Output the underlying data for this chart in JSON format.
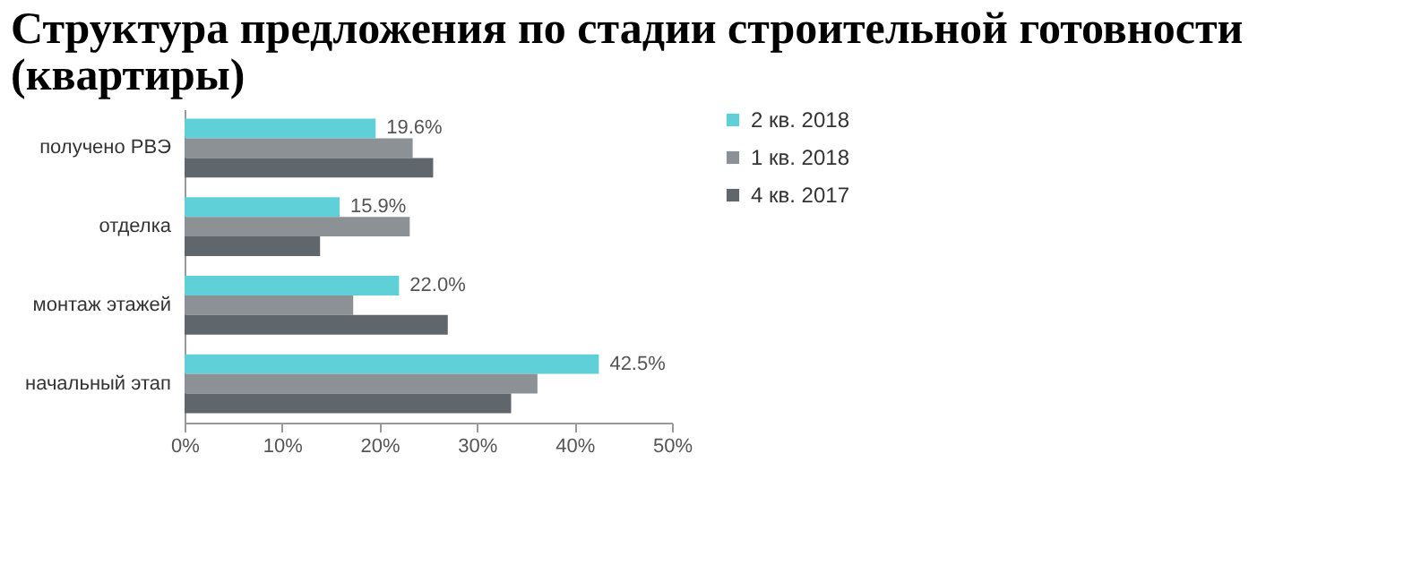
{
  "chart_data": {
    "type": "bar",
    "orientation": "horizontal",
    "title": "Структура предложения по стадии строительной готовности (квартиры)",
    "categories": [
      "получено РВЭ",
      "отделка",
      "монтаж этажей",
      "начальный этап"
    ],
    "series": [
      {
        "name": "2 кв. 2018",
        "color": "#5fcfd8",
        "values": [
          19.6,
          15.9,
          22.0,
          42.5
        ],
        "value_labels": [
          "19.6%",
          "15.9%",
          "22.0%",
          "42.5%"
        ]
      },
      {
        "name": "1 кв. 2018",
        "color": "#8c9196",
        "values": [
          23.4,
          23.1,
          17.3,
          36.2
        ]
      },
      {
        "name": "4 кв. 2017",
        "color": "#5f676c",
        "values": [
          25.5,
          13.9,
          27.0,
          33.5
        ]
      }
    ],
    "xlim": [
      0,
      50
    ],
    "xticks": [
      {
        "value": 0,
        "label": "0%"
      },
      {
        "value": 10,
        "label": "10%"
      },
      {
        "value": 20,
        "label": "20%"
      },
      {
        "value": 30,
        "label": "30%"
      },
      {
        "value": 40,
        "label": "40%"
      },
      {
        "value": 50,
        "label": "50%"
      }
    ],
    "grid": false,
    "legend": "top right"
  }
}
